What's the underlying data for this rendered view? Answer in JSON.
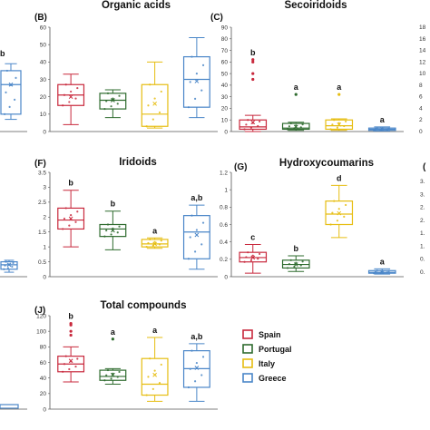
{
  "colors": {
    "spain": "#c8283c",
    "portugal": "#2e6b2e",
    "italy": "#e6bd10",
    "greece": "#4a86c8",
    "axis": "#555555"
  },
  "legend": [
    {
      "name": "Spain",
      "color": "#c8283c"
    },
    {
      "name": "Portugal",
      "color": "#2e6b2e"
    },
    {
      "name": "Italy",
      "color": "#e6bd10"
    },
    {
      "name": "Greece",
      "color": "#4a86c8"
    }
  ],
  "chart_data": [
    {
      "type": "box",
      "panel": "(B)",
      "title": "Organic acids",
      "ylim": [
        0,
        60
      ],
      "yticks": [
        0,
        10,
        20,
        30,
        40,
        50,
        60
      ],
      "groups": [
        {
          "q1": 15,
          "median": 21,
          "q3": 27,
          "wlow": 4,
          "whigh": 33,
          "mean": 20,
          "sig": "",
          "outliers": []
        },
        {
          "q1": 13,
          "median": 18,
          "q3": 22,
          "wlow": 8,
          "whigh": 24,
          "mean": 18,
          "sig": "",
          "outliers": []
        },
        {
          "q1": 3,
          "median": 10,
          "q3": 27,
          "wlow": 2,
          "whigh": 40,
          "mean": 16,
          "sig": "",
          "outliers": []
        },
        {
          "q1": 14,
          "median": 30,
          "q3": 43,
          "wlow": 8,
          "whigh": 54,
          "mean": 29,
          "sig": "",
          "outliers": []
        }
      ]
    },
    {
      "type": "box",
      "panel": "(C)",
      "title": "Secoiridoids",
      "ylim": [
        0,
        90
      ],
      "yticks": [
        0,
        10,
        20,
        30,
        40,
        50,
        60,
        70,
        80,
        90
      ],
      "groups": [
        {
          "q1": 2,
          "median": 4,
          "q3": 10,
          "wlow": 0,
          "whigh": 14,
          "mean": 8,
          "sig": "b",
          "outliers": [
            45,
            50,
            60,
            62
          ]
        },
        {
          "q1": 2,
          "median": 3,
          "q3": 7,
          "wlow": 1,
          "whigh": 8,
          "mean": 4,
          "sig": "a",
          "outliers": [
            32
          ]
        },
        {
          "q1": 2,
          "median": 5,
          "q3": 10,
          "wlow": 1,
          "whigh": 11,
          "mean": 6,
          "sig": "a",
          "outliers": [
            32
          ]
        },
        {
          "q1": 1,
          "median": 2,
          "q3": 3,
          "wlow": 0.5,
          "whigh": 4,
          "mean": 2,
          "sig": "a",
          "outliers": []
        }
      ]
    },
    {
      "type": "box",
      "panel": "(F)",
      "title": "Iridoids",
      "ylim": [
        0,
        3.5
      ],
      "yticks": [
        0,
        0.5,
        1,
        1.5,
        2,
        2.5,
        3,
        3.5
      ],
      "groups": [
        {
          "q1": 1.6,
          "median": 1.9,
          "q3": 2.3,
          "wlow": 1.0,
          "whigh": 2.9,
          "mean": 1.95,
          "sig": "b",
          "outliers": []
        },
        {
          "q1": 1.35,
          "median": 1.6,
          "q3": 1.75,
          "wlow": 0.9,
          "whigh": 2.2,
          "mean": 1.55,
          "sig": "b",
          "outliers": []
        },
        {
          "q1": 1.0,
          "median": 1.1,
          "q3": 1.25,
          "wlow": 0.95,
          "whigh": 1.3,
          "mean": 1.1,
          "sig": "a",
          "outliers": []
        },
        {
          "q1": 0.6,
          "median": 1.5,
          "q3": 2.05,
          "wlow": 0.25,
          "whigh": 2.4,
          "mean": 1.4,
          "sig": "a,b",
          "outliers": []
        }
      ]
    },
    {
      "type": "box",
      "panel": "(G)",
      "title": "Hydroxycoumarins",
      "ylim": [
        0,
        1.2
      ],
      "yticks": [
        0,
        0.2,
        0.4,
        0.6,
        0.8,
        1,
        1.2
      ],
      "groups": [
        {
          "q1": 0.17,
          "median": 0.22,
          "q3": 0.28,
          "wlow": 0.04,
          "whigh": 0.37,
          "mean": 0.22,
          "sig": "c",
          "outliers": []
        },
        {
          "q1": 0.1,
          "median": 0.14,
          "q3": 0.19,
          "wlow": 0.06,
          "whigh": 0.24,
          "mean": 0.14,
          "sig": "b",
          "outliers": []
        },
        {
          "q1": 0.6,
          "median": 0.72,
          "q3": 0.87,
          "wlow": 0.45,
          "whigh": 1.05,
          "mean": 0.73,
          "sig": "d",
          "outliers": []
        },
        {
          "q1": 0.04,
          "median": 0.05,
          "q3": 0.07,
          "wlow": 0.03,
          "whigh": 0.09,
          "mean": 0.05,
          "sig": "a",
          "outliers": []
        }
      ]
    },
    {
      "type": "box",
      "panel": "(J)",
      "title": "Total compounds",
      "ylim": [
        0,
        120
      ],
      "yticks": [
        0,
        20,
        40,
        60,
        80,
        100,
        120
      ],
      "groups": [
        {
          "q1": 48,
          "median": 58,
          "q3": 68,
          "wlow": 35,
          "whigh": 80,
          "mean": 62,
          "sig": "b",
          "outliers": [
            95,
            100,
            108,
            110
          ]
        },
        {
          "q1": 37,
          "median": 42,
          "q3": 50,
          "wlow": 32,
          "whigh": 52,
          "mean": 44,
          "sig": "a",
          "outliers": [
            90
          ]
        },
        {
          "q1": 18,
          "median": 32,
          "q3": 65,
          "wlow": 10,
          "whigh": 92,
          "mean": 44,
          "sig": "a",
          "outliers": []
        },
        {
          "q1": 28,
          "median": 52,
          "q3": 75,
          "wlow": 10,
          "whigh": 84,
          "mean": 53,
          "sig": "a,b",
          "outliers": []
        }
      ]
    }
  ],
  "partial_left": {
    "row1_sig": "b",
    "row1_box": {
      "q1": 10,
      "median": 27,
      "q3": 35,
      "wlow": 7,
      "whigh": 39
    },
    "row2_box": {
      "q1": 0.25,
      "median": 0.4,
      "q3": 0.5,
      "wlow": 0.15,
      "whigh": 0.55
    }
  },
  "partial_right": {
    "row1_ticks": [
      "18",
      "16",
      "14",
      "12",
      "10",
      "8",
      "6",
      "4",
      "2",
      "0"
    ],
    "row2_ticks": [
      "3.",
      "3.",
      "2.",
      "2.",
      "1.",
      "1.",
      "0.",
      "0."
    ],
    "row2_label": "("
  }
}
